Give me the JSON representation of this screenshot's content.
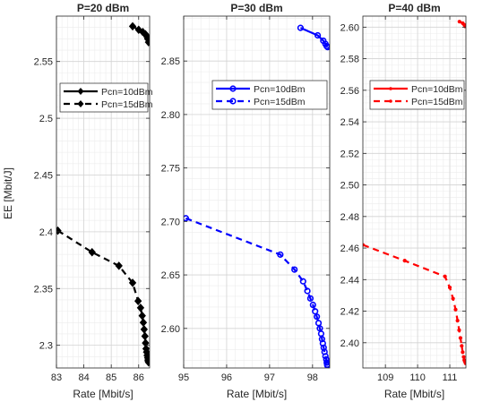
{
  "figure": {
    "ylabel_shared": "EE [Mbit/J]"
  },
  "chart_data": [
    {
      "type": "line",
      "title": "P=20 dBm",
      "xlabel": "Rate [Mbit/s]",
      "ylabel": "EE [Mbit/J]",
      "xlim": [
        83,
        86.4
      ],
      "ylim": [
        2.28,
        2.59
      ],
      "xticks": [
        83,
        84,
        85,
        86
      ],
      "yticks": [
        2.3,
        2.35,
        2.4,
        2.45,
        2.5,
        2.55
      ],
      "grid": true,
      "legend_position": "middle-left",
      "color": "#000000",
      "marker": "diamond",
      "series": [
        {
          "name": "Pcn=10dBm",
          "style": "solid",
          "x": [
            85.78,
            86.0,
            86.15,
            86.25,
            86.3,
            86.33,
            86.36
          ],
          "y": [
            2.581,
            2.578,
            2.576,
            2.574,
            2.572,
            2.57,
            2.567
          ]
        },
        {
          "name": "Pcn=15dBm",
          "style": "dashed",
          "x": [
            83.05,
            84.3,
            85.28,
            85.78,
            85.98,
            86.07,
            86.13,
            86.17,
            86.2,
            86.23,
            86.25,
            86.27,
            86.29,
            86.31,
            86.33,
            86.34,
            86.35,
            86.36
          ],
          "y": [
            2.401,
            2.382,
            2.37,
            2.355,
            2.339,
            2.333,
            2.326,
            2.32,
            2.314,
            2.308,
            2.302,
            2.297,
            2.294,
            2.291,
            2.289,
            2.287,
            2.286,
            2.285
          ]
        }
      ]
    },
    {
      "type": "line",
      "title": "P=30 dBm",
      "xlabel": "Rate [Mbit/s]",
      "ylabel": "",
      "xlim": [
        95,
        98.4
      ],
      "ylim": [
        2.563,
        2.892
      ],
      "xticks": [
        95,
        96,
        97,
        98
      ],
      "yticks": [
        2.6,
        2.65,
        2.7,
        2.75,
        2.8,
        2.85
      ],
      "grid": true,
      "legend_position": "top",
      "color": "#0000ff",
      "marker": "circle",
      "series": [
        {
          "name": "Pcn=10dBm",
          "style": "solid",
          "x": [
            97.72,
            98.12,
            98.25,
            98.3,
            98.33,
            98.35
          ],
          "y": [
            2.881,
            2.874,
            2.869,
            2.866,
            2.864,
            2.863
          ]
        },
        {
          "name": "Pcn=15dBm",
          "style": "dashed",
          "x": [
            95.05,
            97.25,
            97.58,
            97.78,
            97.88,
            97.95,
            98.01,
            98.06,
            98.1,
            98.14,
            98.17,
            98.2,
            98.22,
            98.24,
            98.26,
            98.28,
            98.3,
            98.32,
            98.33,
            98.34,
            98.35
          ],
          "y": [
            2.703,
            2.669,
            2.655,
            2.644,
            2.635,
            2.628,
            2.622,
            2.616,
            2.611,
            2.605,
            2.6,
            2.595,
            2.59,
            2.586,
            2.582,
            2.578,
            2.574,
            2.571,
            2.568,
            2.566,
            2.565
          ]
        }
      ]
    },
    {
      "type": "line",
      "title": "P=40 dBm",
      "xlabel": "Rate [Mbit/s]",
      "ylabel": "",
      "xlim": [
        108.3,
        111.5
      ],
      "ylim": [
        2.384,
        2.607
      ],
      "xticks": [
        109,
        110,
        111
      ],
      "yticks": [
        2.4,
        2.42,
        2.44,
        2.46,
        2.48,
        2.5,
        2.52,
        2.54,
        2.56,
        2.58,
        2.6
      ],
      "grid": true,
      "legend_position": "top-right",
      "color": "#ff0000",
      "marker": "dot",
      "series": [
        {
          "name": "Pcn=10dBm",
          "style": "solid",
          "x": [
            111.3,
            111.4,
            111.45,
            111.48
          ],
          "y": [
            2.6035,
            2.6025,
            2.6015,
            2.6005
          ]
        },
        {
          "name": "Pcn=15dBm",
          "style": "dashed",
          "x": [
            108.3,
            109.6,
            110.85,
            111.0,
            111.1,
            111.18,
            111.24,
            111.29,
            111.33,
            111.37,
            111.4,
            111.43,
            111.45,
            111.47,
            111.49
          ],
          "y": [
            2.462,
            2.452,
            2.442,
            2.435,
            2.428,
            2.421,
            2.414,
            2.408,
            2.403,
            2.398,
            2.394,
            2.391,
            2.389,
            2.388,
            2.387
          ]
        }
      ]
    }
  ]
}
